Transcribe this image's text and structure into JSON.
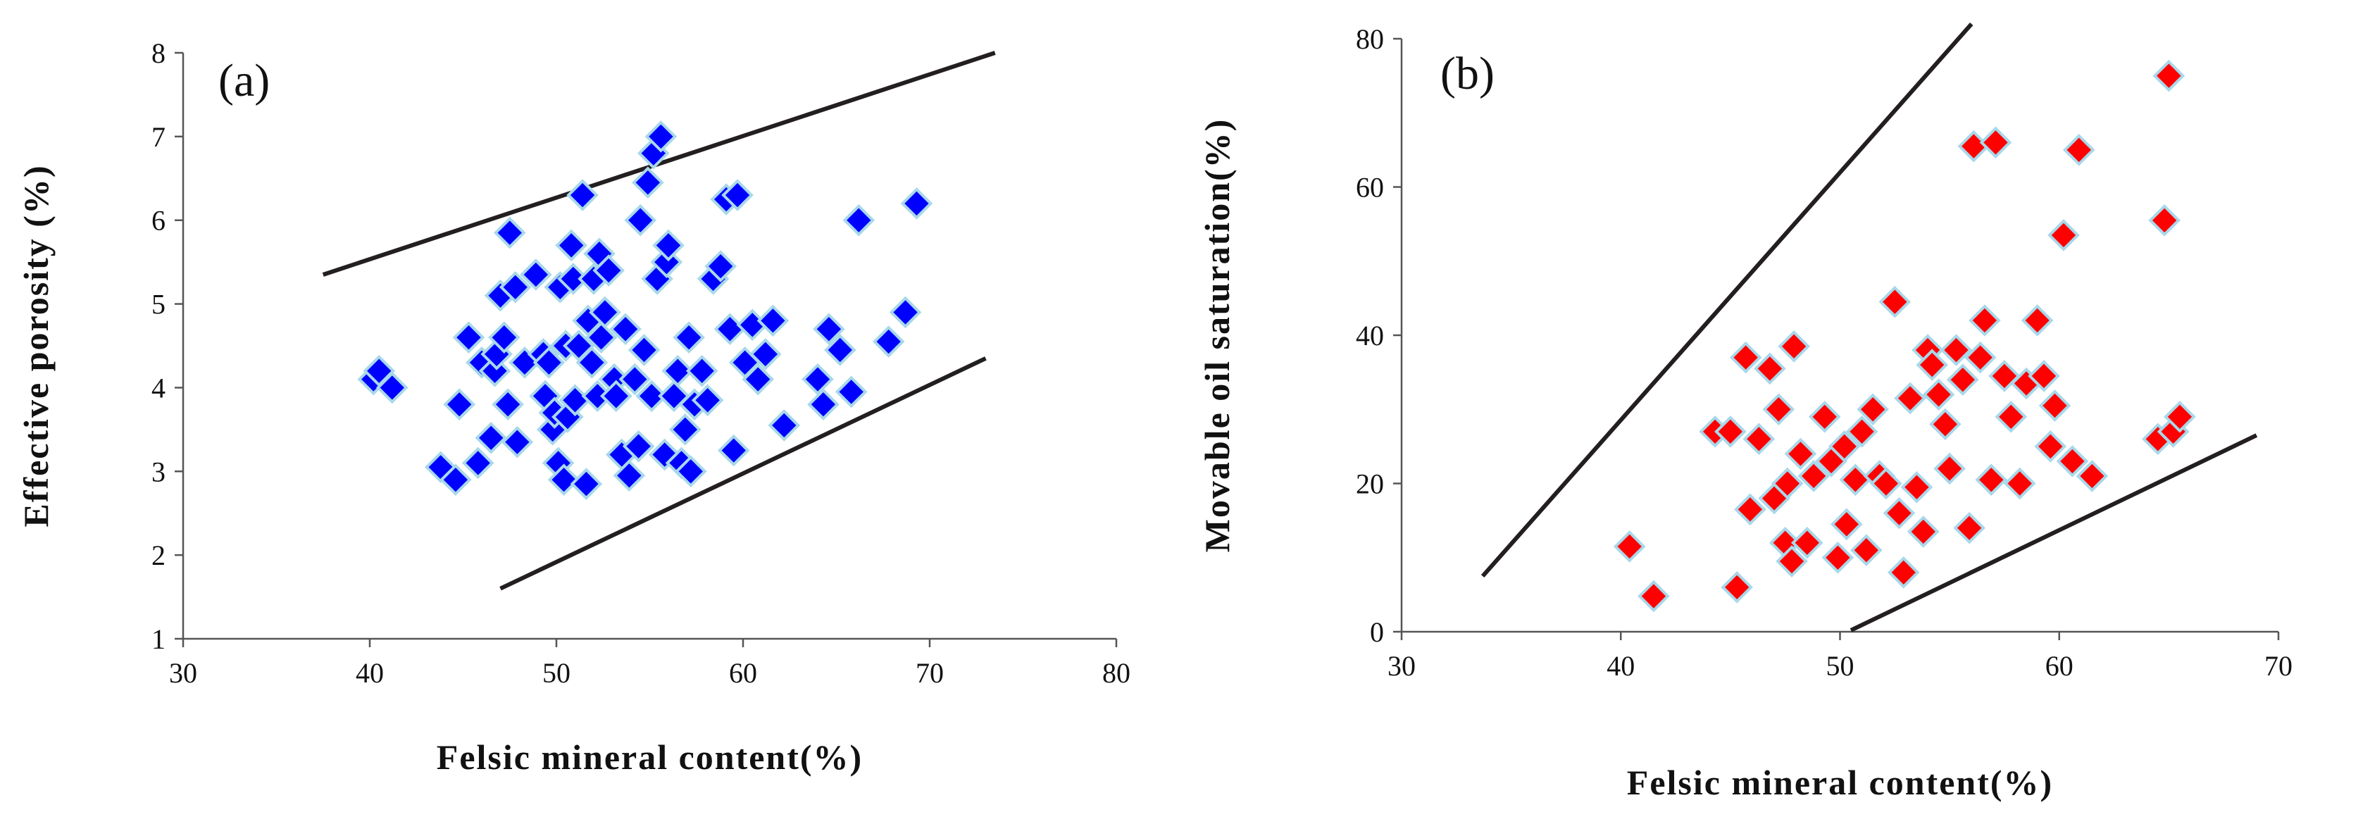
{
  "chart_data": [
    {
      "type": "scatter",
      "panel_label": "(a)",
      "xlabel": "Felsic mineral content(%)",
      "ylabel": "Effective porosity (%)",
      "xlim": [
        30,
        80
      ],
      "ylim": [
        1,
        8
      ],
      "xticks": [
        30,
        40,
        50,
        60,
        70,
        80
      ],
      "yticks": [
        1,
        2,
        3,
        4,
        5,
        6,
        7,
        8
      ],
      "grid": false,
      "marker": "diamond",
      "marker_color": "#0000ff",
      "marker_edge_color": "#a8d8ea",
      "bound_lines": [
        {
          "x": [
            37.5,
            73.5
          ],
          "y": [
            5.35,
            8.0
          ]
        },
        {
          "x": [
            47.0,
            73.0
          ],
          "y": [
            1.6,
            4.35
          ]
        }
      ],
      "series": [
        {
          "x": [
            40.2,
            40.5,
            41.2,
            43.8,
            44.6,
            44.8,
            45.3,
            45.8,
            46.0,
            46.5,
            46.7,
            46.8,
            47.0,
            47.2,
            47.4,
            47.5,
            47.8,
            47.9,
            48.3,
            48.9,
            49.3,
            49.4,
            49.6,
            49.8,
            49.9,
            50.1,
            50.2,
            50.4,
            50.5,
            50.6,
            50.8,
            50.9,
            51.0,
            51.2,
            51.4,
            51.6,
            51.7,
            51.9,
            52.0,
            52.2,
            52.3,
            52.4,
            52.6,
            52.8,
            53.1,
            53.2,
            53.5,
            53.7,
            53.9,
            54.2,
            54.4,
            54.5,
            54.7,
            54.9,
            55.1,
            55.2,
            55.4,
            55.6,
            55.8,
            55.9,
            56.0,
            56.3,
            56.5,
            56.7,
            56.9,
            57.1,
            57.2,
            57.4,
            57.8,
            58.1,
            58.4,
            58.8,
            59.1,
            59.3,
            59.5,
            59.7,
            60.1,
            60.5,
            60.8,
            61.2,
            61.6,
            62.2,
            64.0,
            64.3,
            64.6,
            65.2,
            65.8,
            66.2,
            67.8,
            68.7,
            69.3
          ],
          "y": [
            4.1,
            4.2,
            4.0,
            3.05,
            2.9,
            3.8,
            4.6,
            3.1,
            4.3,
            3.4,
            4.2,
            4.4,
            5.1,
            4.6,
            3.8,
            5.85,
            5.2,
            3.35,
            4.3,
            5.35,
            4.4,
            3.9,
            4.3,
            3.5,
            3.7,
            3.1,
            5.2,
            2.9,
            4.5,
            3.65,
            5.7,
            5.3,
            3.85,
            4.5,
            6.3,
            2.85,
            4.8,
            4.3,
            5.3,
            3.9,
            5.6,
            4.6,
            4.9,
            5.4,
            4.1,
            3.9,
            3.2,
            4.7,
            2.95,
            4.1,
            3.3,
            6.0,
            4.45,
            6.45,
            3.9,
            6.8,
            5.3,
            7.0,
            3.2,
            5.5,
            5.7,
            3.9,
            4.2,
            3.1,
            3.5,
            4.6,
            3.0,
            3.8,
            4.2,
            3.85,
            5.3,
            5.45,
            6.25,
            4.7,
            3.25,
            6.3,
            4.3,
            4.75,
            4.1,
            4.4,
            4.8,
            3.55,
            4.1,
            3.8,
            4.7,
            4.45,
            3.95,
            6.0,
            4.55,
            4.9,
            6.2
          ]
        }
      ]
    },
    {
      "type": "scatter",
      "panel_label": "(b)",
      "xlabel": "Felsic mineral content(%)",
      "ylabel": "Movable oil saturation(%)",
      "xlim": [
        30,
        70
      ],
      "ylim": [
        0,
        80
      ],
      "xticks": [
        30,
        40,
        50,
        60,
        70
      ],
      "yticks": [
        0,
        20,
        40,
        60,
        80
      ],
      "grid": false,
      "marker": "diamond",
      "marker_color": "#ff0000",
      "marker_edge_color": "#a8d8ea",
      "bound_lines": [
        {
          "x": [
            33.7,
            56.0
          ],
          "y": [
            7.5,
            82.0
          ]
        },
        {
          "x": [
            50.5,
            69.0
          ],
          "y": [
            0.2,
            26.5
          ]
        }
      ],
      "series": [
        {
          "x": [
            40.4,
            41.5,
            44.3,
            45.0,
            45.3,
            45.7,
            45.9,
            46.3,
            46.8,
            47.0,
            47.2,
            47.5,
            47.6,
            47.8,
            47.9,
            48.2,
            48.5,
            48.8,
            49.3,
            49.6,
            49.9,
            50.2,
            50.3,
            50.7,
            51.0,
            51.2,
            51.5,
            51.8,
            52.1,
            52.5,
            52.7,
            52.9,
            53.2,
            53.5,
            53.8,
            54.0,
            54.2,
            54.5,
            54.8,
            55.0,
            55.3,
            55.6,
            55.9,
            56.1,
            56.4,
            56.6,
            56.9,
            57.1,
            57.5,
            57.8,
            58.2,
            58.5,
            59.0,
            59.3,
            59.6,
            59.8,
            60.2,
            60.6,
            60.9,
            61.5,
            64.5,
            64.8,
            65.2,
            65.5,
            65.0
          ],
          "y": [
            11.5,
            4.8,
            27.0,
            27.0,
            6.0,
            37.0,
            16.5,
            26.0,
            35.5,
            18.0,
            30.0,
            12.0,
            20.0,
            9.5,
            38.5,
            24.0,
            12.0,
            21.0,
            29.0,
            23.0,
            10.0,
            25.0,
            14.5,
            20.5,
            27.0,
            11.0,
            30.0,
            21.0,
            20.0,
            44.5,
            16.0,
            8.0,
            31.5,
            19.5,
            13.5,
            38.0,
            36.0,
            32.0,
            28.0,
            22.0,
            38.0,
            34.0,
            14.0,
            65.5,
            37.0,
            42.0,
            20.5,
            66.0,
            34.5,
            29.0,
            20.0,
            33.5,
            42.0,
            34.5,
            25.0,
            30.5,
            53.5,
            23.0,
            65.0,
            21.0,
            26.0,
            55.5,
            27.0,
            29.0,
            75.0
          ]
        }
      ]
    }
  ]
}
